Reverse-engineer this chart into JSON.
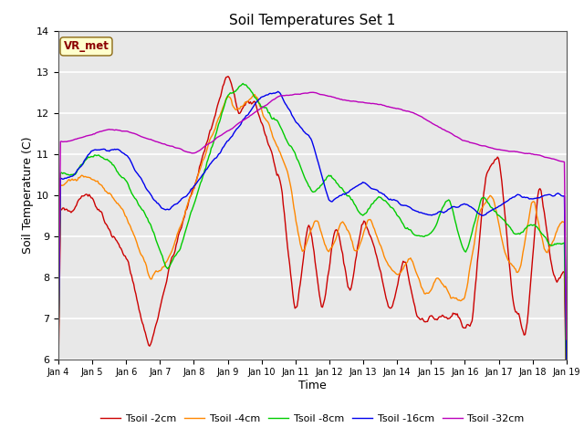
{
  "title": "Soil Temperatures Set 1",
  "xlabel": "Time",
  "ylabel": "Soil Temperature (C)",
  "ylim": [
    6.0,
    14.0
  ],
  "yticks": [
    6.0,
    7.0,
    8.0,
    9.0,
    10.0,
    11.0,
    12.0,
    13.0,
    14.0
  ],
  "xtick_labels": [
    "Jan 4",
    "Jan 5",
    "Jan 6",
    "Jan 7",
    "Jan 8",
    "Jan 9",
    "Jan 10",
    "Jan 11",
    "Jan 12",
    "Jan 13",
    "Jan 14",
    "Jan 15",
    "Jan 16",
    "Jan 17",
    "Jan 18",
    "Jan 19"
  ],
  "series_colors": [
    "#cc0000",
    "#ff8800",
    "#00cc00",
    "#0000ee",
    "#bb00bb"
  ],
  "series_labels": [
    "Tsoil -2cm",
    "Tsoil -4cm",
    "Tsoil -8cm",
    "Tsoil -16cm",
    "Tsoil -32cm"
  ],
  "annotation_text": "VR_met",
  "annotation_color": "#8b0000",
  "annotation_bg": "#ffffcc",
  "fig_bg": "#ffffff",
  "plot_bg": "#e8e8e8",
  "grid_color": "#ffffff",
  "n_points": 480
}
